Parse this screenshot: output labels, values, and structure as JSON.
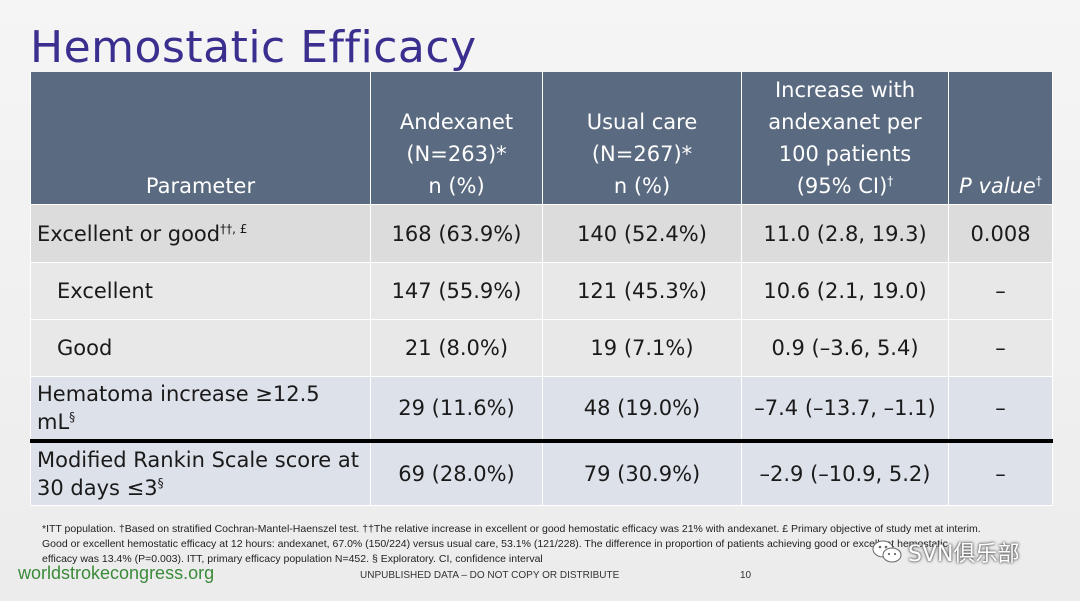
{
  "title": "Hemostatic Efficacy",
  "table": {
    "headers": {
      "parameter": "Parameter",
      "andexanet": [
        "Andexanet",
        "(N=263)*",
        "n (%)"
      ],
      "usual_care": [
        "Usual care",
        "(N=267)*",
        "n (%)"
      ],
      "increase": [
        "Increase with",
        "andexanet per",
        "100 patients",
        "(95% CI)"
      ],
      "increase_sup": "†",
      "pvalue": "P value",
      "pvalue_sup": "†"
    },
    "rows": [
      {
        "label": "Excellent or good",
        "sup": "††, £",
        "andexanet": "168 (63.9%)",
        "usual_care": "140 (52.4%)",
        "increase": "11.0 (2.8, 19.3)",
        "pvalue": "0.008"
      },
      {
        "label": "Excellent",
        "sup": "",
        "andexanet": "147 (55.9%)",
        "usual_care": "121 (45.3%)",
        "increase": "10.6 (2.1, 19.0)",
        "pvalue": "–"
      },
      {
        "label": "Good",
        "sup": "",
        "andexanet": "21 (8.0%)",
        "usual_care": "19 (7.1%)",
        "increase": "0.9 (–3.6, 5.4)",
        "pvalue": "–"
      },
      {
        "label": "Hematoma increase ≥12.5 mL",
        "sup": "§",
        "andexanet": "29 (11.6%)",
        "usual_care": "48 (19.0%)",
        "increase": "–7.4 (–13.7, –1.1)",
        "pvalue": "–"
      },
      {
        "label": "Modified Rankin Scale score at 30 days ≤3",
        "sup": "§",
        "andexanet": "69 (28.0%)",
        "usual_care": "79 (30.9%)",
        "increase": "–2.9 (–10.9, 5.2)",
        "pvalue": "–"
      }
    ]
  },
  "footnote": "*ITT population. †Based on stratified Cochran-Mantel-Haenszel test. ††The relative increase in excellent or good hemostatic efficacy was 21% with andexanet. £ Primary objective of study met at interim. Good or excellent hemostatic efficacy at 12 hours: andexanet, 67.0% (150/224) versus usual care, 53.1% (121/228). The difference in proportion of patients achieving good or excellent hemostatic efficacy was 13.4% (P=0.003). ITT, primary efficacy population N=452. § Exploratory. CI, confidence interval",
  "footer": {
    "brand": "worldstrokecongress.org",
    "disclaimer": "UNPUBLISHED DATA – DO NOT COPY OR DISTRIBUTE",
    "page": "10"
  },
  "watermark": {
    "text": "SVN俱乐部",
    "icon": "wechat-icon"
  }
}
